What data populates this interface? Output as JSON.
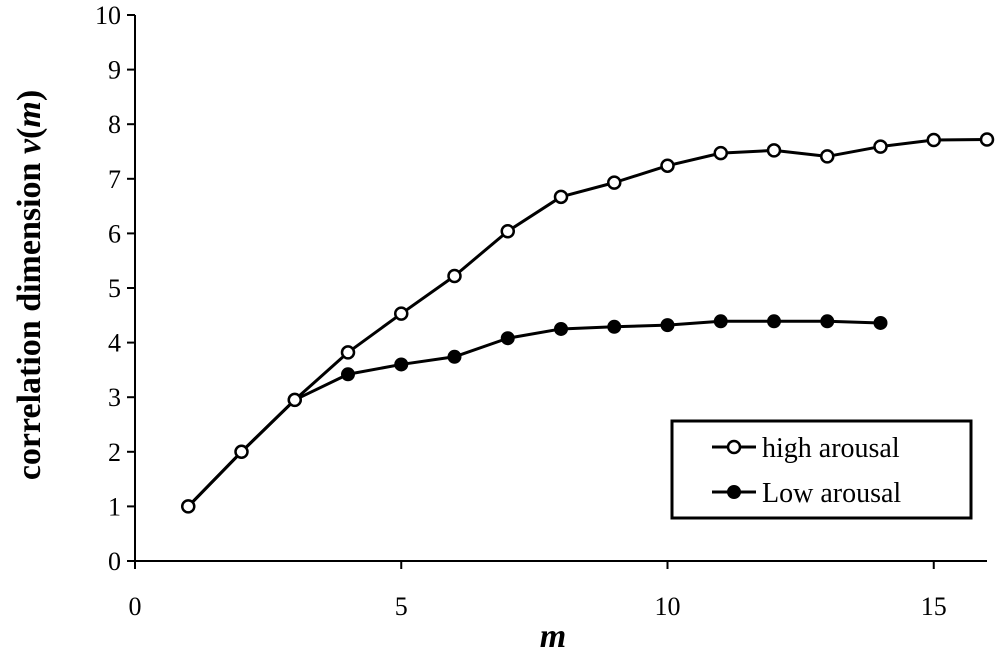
{
  "chart_data": {
    "type": "line",
    "xlabel": "m",
    "ylabel_prefix": "correlation dimension ",
    "ylabel_var": "v",
    "ylabel_open": "(",
    "ylabel_arg": "m",
    "ylabel_close": ")",
    "xlim": [
      0,
      16
    ],
    "ylim": [
      0,
      10
    ],
    "xticks": [
      0,
      5,
      10,
      15
    ],
    "yticks": [
      0,
      1,
      2,
      3,
      4,
      5,
      6,
      7,
      8,
      9,
      10
    ],
    "grid": false,
    "legend_position": "bottom-right",
    "series": [
      {
        "name": "high arousal",
        "marker": "open-circle",
        "x": [
          1,
          2,
          3,
          4,
          5,
          6,
          7,
          8,
          9,
          10,
          11,
          12,
          13,
          14,
          15,
          16
        ],
        "y": [
          1.0,
          2.0,
          2.95,
          3.82,
          4.53,
          5.22,
          6.04,
          6.67,
          6.93,
          7.24,
          7.47,
          7.52,
          7.41,
          7.59,
          7.71,
          7.72
        ]
      },
      {
        "name": "Low arousal",
        "marker": "filled-circle",
        "x": [
          1,
          2,
          3,
          4,
          5,
          6,
          7,
          8,
          9,
          10,
          11,
          12,
          13,
          14
        ],
        "y": [
          1.0,
          2.0,
          2.95,
          3.42,
          3.6,
          3.74,
          4.08,
          4.25,
          4.29,
          4.32,
          4.39,
          4.39,
          4.39,
          4.36
        ]
      }
    ]
  }
}
